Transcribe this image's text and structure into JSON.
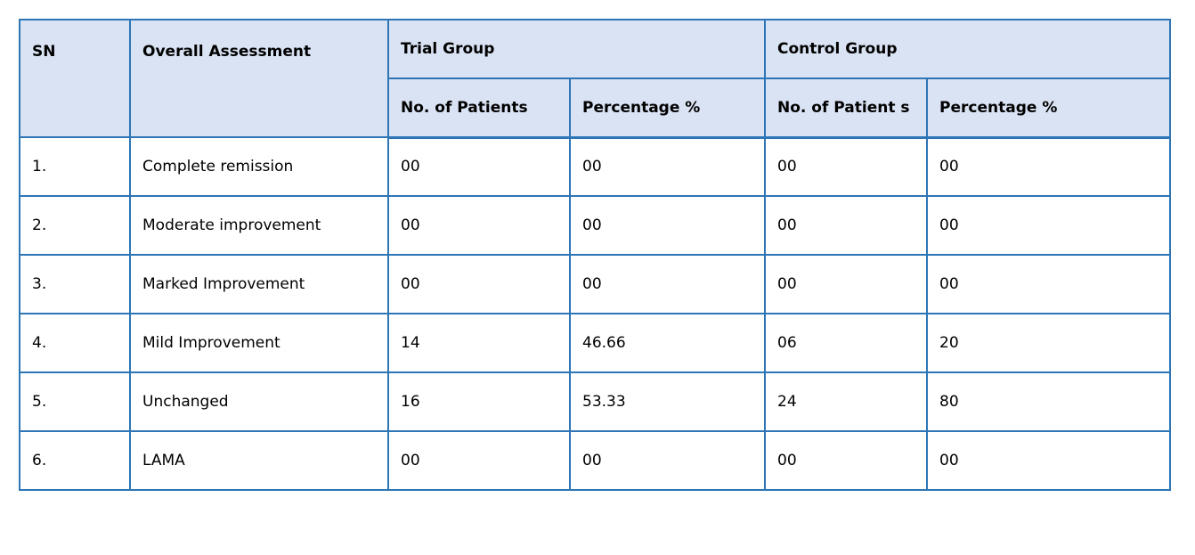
{
  "table": {
    "headers": {
      "sn": "SN",
      "overall_assessment": "Overall Assessment",
      "trial_group": "Trial Group",
      "control_group": "Control Group",
      "trial_no_of_patients": "No. of Patients",
      "trial_percentage": "Percentage %",
      "control_no_of_patients": "No. of Patient s",
      "control_percentage": "Percentage %"
    },
    "rows": [
      {
        "sn": "1.",
        "assessment": "Complete remission",
        "trial_no": "00",
        "trial_pct": "00",
        "control_no": "00",
        "control_pct": "00"
      },
      {
        "sn": "2.",
        "assessment": "Moderate improvement",
        "trial_no": "00",
        "trial_pct": "00",
        "control_no": "00",
        "control_pct": "00"
      },
      {
        "sn": "3.",
        "assessment": "Marked Improvement",
        "trial_no": "00",
        "trial_pct": "00",
        "control_no": "00",
        "control_pct": "00"
      },
      {
        "sn": "4.",
        "assessment": "Mild Improvement",
        "trial_no": "14",
        "trial_pct": "46.66",
        "control_no": "06",
        "control_pct": "20"
      },
      {
        "sn": "5.",
        "assessment": "Unchanged",
        "trial_no": "16",
        "trial_pct": "53.33",
        "control_no": "24",
        "control_pct": "80"
      },
      {
        "sn": "6.",
        "assessment": "LAMA",
        "trial_no": "00",
        "trial_pct": "00",
        "control_no": "00",
        "control_pct": "00"
      }
    ]
  },
  "colors": {
    "border": "#2e75b6",
    "header_background": "#dae3f3"
  }
}
